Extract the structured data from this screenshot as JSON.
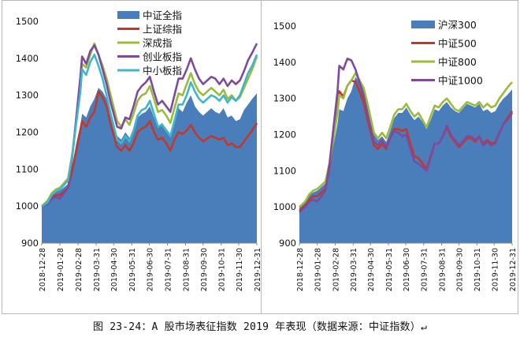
{
  "caption": "图 23-24：A 股市场表征指数 2019 年表现（数据来源：中证指数）↵",
  "colors": {
    "area": "#4a7ebb",
    "red": "#c0392b",
    "green": "#9bbb3c",
    "purple": "#7d4a9e",
    "cyan": "#3fb6cc"
  },
  "chart_data": [
    {
      "type": "area",
      "yticks": [
        "1500",
        "1400",
        "1300",
        "1200",
        "1100",
        "1000",
        "900"
      ],
      "ylim": [
        900,
        1500
      ],
      "xticks": [
        "2018-12-28",
        "2019-01-28",
        "2019-02-28",
        "2019-03-31",
        "2019-04-30",
        "2019-05-31",
        "2019-06-30",
        "2019-07-31",
        "2019-08-31",
        "2019-09-30",
        "2019-10-31",
        "2019-11-30",
        "2019-12-31"
      ],
      "x": [
        "2018-12-28",
        "2019-01-07",
        "2019-01-14",
        "2019-01-21",
        "2019-01-28",
        "2019-02-11",
        "2019-02-18",
        "2019-02-25",
        "2019-03-04",
        "2019-03-07",
        "2019-03-14",
        "2019-03-21",
        "2019-03-28",
        "2019-04-04",
        "2019-04-11",
        "2019-04-18",
        "2019-04-25",
        "2019-05-06",
        "2019-05-13",
        "2019-05-20",
        "2019-05-27",
        "2019-06-03",
        "2019-06-10",
        "2019-06-17",
        "2019-06-24",
        "2019-07-01",
        "2019-07-08",
        "2019-07-15",
        "2019-07-22",
        "2019-07-29",
        "2019-08-05",
        "2019-08-12",
        "2019-08-19",
        "2019-08-26",
        "2019-09-02",
        "2019-09-09",
        "2019-09-16",
        "2019-09-23",
        "2019-09-30",
        "2019-10-14",
        "2019-10-21",
        "2019-10-28",
        "2019-11-04",
        "2019-11-11",
        "2019-11-18",
        "2019-11-25",
        "2019-12-02",
        "2019-12-09",
        "2019-12-16",
        "2019-12-23",
        "2019-12-31"
      ],
      "series": [
        {
          "name": "中证全指",
          "kind": "area",
          "color": "#4a7ebb",
          "values": [
            1000,
            1012,
            1030,
            1040,
            1042,
            1060,
            1110,
            1170,
            1220,
            1250,
            1240,
            1270,
            1290,
            1320,
            1310,
            1290,
            1250,
            1190,
            1180,
            1200,
            1185,
            1210,
            1240,
            1250,
            1255,
            1270,
            1240,
            1215,
            1225,
            1210,
            1195,
            1230,
            1265,
            1255,
            1280,
            1300,
            1270,
            1255,
            1245,
            1265,
            1255,
            1250,
            1265,
            1240,
            1245,
            1230,
            1235,
            1260,
            1275,
            1290,
            1305
          ]
        },
        {
          "name": "上证综指",
          "kind": "line",
          "color": "#c0392b",
          "values": [
            1000,
            1010,
            1025,
            1030,
            1030,
            1050,
            1095,
            1150,
            1205,
            1230,
            1215,
            1240,
            1255,
            1310,
            1295,
            1270,
            1220,
            1160,
            1150,
            1165,
            1150,
            1170,
            1200,
            1210,
            1215,
            1230,
            1200,
            1180,
            1185,
            1170,
            1150,
            1180,
            1200,
            1195,
            1205,
            1220,
            1200,
            1185,
            1175,
            1190,
            1185,
            1180,
            1185,
            1165,
            1170,
            1160,
            1160,
            1175,
            1190,
            1205,
            1225
          ]
        },
        {
          "name": "深成指",
          "kind": "line",
          "color": "#9bbb3c",
          "values": [
            1000,
            1015,
            1035,
            1045,
            1050,
            1075,
            1140,
            1230,
            1320,
            1385,
            1375,
            1410,
            1440,
            1410,
            1380,
            1345,
            1300,
            1230,
            1215,
            1235,
            1220,
            1250,
            1285,
            1300,
            1305,
            1325,
            1290,
            1255,
            1260,
            1245,
            1225,
            1265,
            1305,
            1300,
            1330,
            1360,
            1330,
            1310,
            1300,
            1320,
            1310,
            1300,
            1315,
            1290,
            1300,
            1285,
            1295,
            1320,
            1345,
            1370,
            1405
          ]
        },
        {
          "name": "创业板指",
          "kind": "line",
          "color": "#7d4a9e",
          "values": [
            1000,
            1005,
            1020,
            1025,
            1020,
            1050,
            1130,
            1240,
            1350,
            1405,
            1385,
            1420,
            1435,
            1410,
            1370,
            1330,
            1280,
            1215,
            1210,
            1240,
            1235,
            1270,
            1310,
            1325,
            1335,
            1350,
            1310,
            1275,
            1285,
            1270,
            1255,
            1300,
            1345,
            1345,
            1370,
            1400,
            1370,
            1345,
            1330,
            1350,
            1345,
            1330,
            1345,
            1325,
            1340,
            1330,
            1340,
            1365,
            1395,
            1415,
            1440
          ]
        },
        {
          "name": "中小板指",
          "kind": "line",
          "color": "#3fb6cc",
          "values": [
            1000,
            1010,
            1030,
            1040,
            1045,
            1070,
            1135,
            1225,
            1310,
            1370,
            1355,
            1390,
            1410,
            1380,
            1345,
            1300,
            1250,
            1180,
            1170,
            1190,
            1175,
            1205,
            1245,
            1260,
            1265,
            1285,
            1250,
            1215,
            1220,
            1205,
            1190,
            1230,
            1275,
            1275,
            1300,
            1335,
            1310,
            1290,
            1280,
            1300,
            1295,
            1285,
            1300,
            1280,
            1295,
            1285,
            1300,
            1330,
            1360,
            1380,
            1410
          ]
        }
      ]
    },
    {
      "type": "area",
      "yticks": [
        "1500",
        "1400",
        "1300",
        "1200",
        "1100",
        "1000",
        "900"
      ],
      "ylim": [
        900,
        1500
      ],
      "xticks": [
        "2018-12-28",
        "2019-01-28",
        "2019-02-28",
        "2019-03-31",
        "2019-04-30",
        "2019-05-31",
        "2019-06-30",
        "2019-07-31",
        "2019-08-31",
        "2019-09-30",
        "2019-10-31",
        "2019-11-30",
        "2019-12-31"
      ],
      "x": [
        "2018-12-28",
        "2019-01-07",
        "2019-01-14",
        "2019-01-21",
        "2019-01-28",
        "2019-02-11",
        "2019-02-18",
        "2019-02-25",
        "2019-03-04",
        "2019-03-07",
        "2019-03-14",
        "2019-03-21",
        "2019-03-28",
        "2019-04-04",
        "2019-04-11",
        "2019-04-18",
        "2019-04-25",
        "2019-05-06",
        "2019-05-13",
        "2019-05-20",
        "2019-05-27",
        "2019-06-03",
        "2019-06-10",
        "2019-06-17",
        "2019-06-24",
        "2019-07-01",
        "2019-07-08",
        "2019-07-15",
        "2019-07-22",
        "2019-07-29",
        "2019-08-05",
        "2019-08-12",
        "2019-08-19",
        "2019-08-26",
        "2019-09-02",
        "2019-09-09",
        "2019-09-16",
        "2019-09-23",
        "2019-09-30",
        "2019-10-14",
        "2019-10-21",
        "2019-10-28",
        "2019-11-04",
        "2019-11-11",
        "2019-11-18",
        "2019-11-25",
        "2019-12-02",
        "2019-12-09",
        "2019-12-16",
        "2019-12-23",
        "2019-12-31"
      ],
      "series": [
        {
          "name": "沪深300",
          "kind": "area",
          "color": "#4a7ebb",
          "values": [
            1000,
            1015,
            1035,
            1040,
            1045,
            1065,
            1110,
            1170,
            1230,
            1270,
            1265,
            1300,
            1320,
            1360,
            1345,
            1330,
            1280,
            1200,
            1185,
            1195,
            1180,
            1210,
            1245,
            1260,
            1260,
            1275,
            1255,
            1240,
            1250,
            1235,
            1215,
            1240,
            1270,
            1265,
            1280,
            1290,
            1275,
            1265,
            1260,
            1285,
            1280,
            1275,
            1285,
            1265,
            1270,
            1260,
            1265,
            1285,
            1300,
            1310,
            1325
          ]
        },
        {
          "name": "中证500",
          "kind": "line",
          "color": "#c0392b",
          "values": [
            990,
            1005,
            1020,
            1030,
            1030,
            1050,
            1110,
            1190,
            1270,
            1320,
            1305,
            1335,
            1350,
            1345,
            1320,
            1290,
            1240,
            1170,
            1160,
            1175,
            1160,
            1190,
            1215,
            1215,
            1210,
            1215,
            1175,
            1140,
            1135,
            1120,
            1105,
            1140,
            1175,
            1175,
            1195,
            1220,
            1195,
            1180,
            1165,
            1190,
            1190,
            1180,
            1195,
            1175,
            1185,
            1175,
            1180,
            1205,
            1230,
            1245,
            1265
          ]
        },
        {
          "name": "中证800",
          "kind": "line",
          "color": "#9bbb3c",
          "values": [
            1000,
            1015,
            1035,
            1045,
            1050,
            1070,
            1120,
            1190,
            1260,
            1310,
            1300,
            1335,
            1350,
            1370,
            1350,
            1330,
            1285,
            1205,
            1190,
            1205,
            1190,
            1220,
            1255,
            1270,
            1270,
            1285,
            1265,
            1250,
            1260,
            1240,
            1220,
            1250,
            1280,
            1275,
            1290,
            1300,
            1285,
            1270,
            1265,
            1290,
            1285,
            1280,
            1290,
            1275,
            1285,
            1275,
            1280,
            1300,
            1315,
            1330,
            1345
          ]
        },
        {
          "name": "中证1000",
          "kind": "line",
          "color": "#7d4a9e",
          "values": [
            985,
            1000,
            1015,
            1020,
            1015,
            1045,
            1120,
            1220,
            1320,
            1390,
            1380,
            1410,
            1405,
            1380,
            1345,
            1310,
            1255,
            1180,
            1170,
            1185,
            1165,
            1190,
            1210,
            1205,
            1195,
            1200,
            1160,
            1125,
            1120,
            1110,
            1100,
            1135,
            1175,
            1175,
            1195,
            1225,
            1200,
            1185,
            1170,
            1195,
            1195,
            1185,
            1195,
            1170,
            1180,
            1170,
            1175,
            1205,
            1230,
            1240,
            1260
          ]
        }
      ]
    }
  ]
}
